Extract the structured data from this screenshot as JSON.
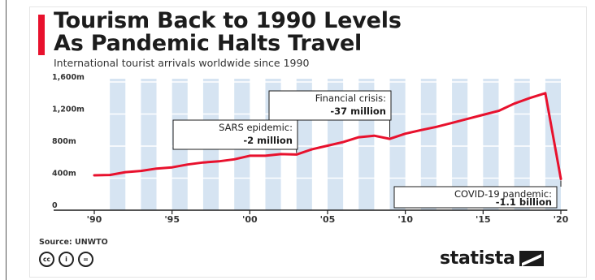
{
  "header": {
    "title": "Tourism Back to 1990 Levels\nAs Pandemic Halts Travel",
    "subtitle": "International tourist arrivals worldwide since 1990"
  },
  "footer": {
    "source": "Source: UNWTO",
    "brand": "statista",
    "license_icons": [
      "cc-icon",
      "by-icon",
      "nd-icon"
    ],
    "license_symbols": [
      "cc",
      "i",
      "="
    ]
  },
  "colors": {
    "accent": "#e8112d",
    "line": "#e8112d",
    "stripe": "#d6e4f2",
    "text": "#1c1c1c"
  },
  "chart_data": {
    "type": "line",
    "title": "Tourism Back to 1990 Levels As Pandemic Halts Travel",
    "subtitle": "International tourist arrivals worldwide since 1990",
    "xlabel": "",
    "ylabel": "",
    "xlim": [
      1990,
      2020
    ],
    "ylim": [
      0,
      1600
    ],
    "grid": true,
    "x_tick_labels": [
      "'90",
      "'95",
      "'00",
      "'05",
      "'10",
      "'15",
      "'20"
    ],
    "x_tick_values": [
      1990,
      1995,
      2000,
      2005,
      2010,
      2015,
      2020
    ],
    "y_tick_labels": [
      "0",
      "400m",
      "800m",
      "1,200m",
      "1,600m"
    ],
    "y_tick_values": [
      0,
      400,
      800,
      1200,
      1600
    ],
    "series": [
      {
        "x": [
          1990,
          1991,
          1992,
          1993,
          1994,
          1995,
          1996,
          1997,
          1998,
          1999,
          2000,
          2001,
          2002,
          2003,
          2004,
          2005,
          2006,
          2007,
          2008,
          2009,
          2010,
          2011,
          2012,
          2013,
          2014,
          2015,
          2016,
          2017,
          2018,
          2019,
          2020
        ],
        "values": [
          435,
          440,
          475,
          490,
          520,
          535,
          570,
          595,
          610,
          635,
          680,
          680,
          700,
          695,
          760,
          805,
          850,
          910,
          930,
          890,
          955,
          1000,
          1040,
          1090,
          1140,
          1190,
          1240,
          1330,
          1400,
          1460,
          390
        ]
      }
    ],
    "annotations": [
      {
        "title": "SARS epidemic:",
        "value": "-2 million",
        "x": 2003,
        "y": 695
      },
      {
        "title": "Financial crisis:",
        "value": "-37 million",
        "x": 2009,
        "y": 890
      },
      {
        "title": "COVID-19 pandemic:",
        "value": "-1.1 billion",
        "x": 2020,
        "y": 390
      }
    ]
  }
}
